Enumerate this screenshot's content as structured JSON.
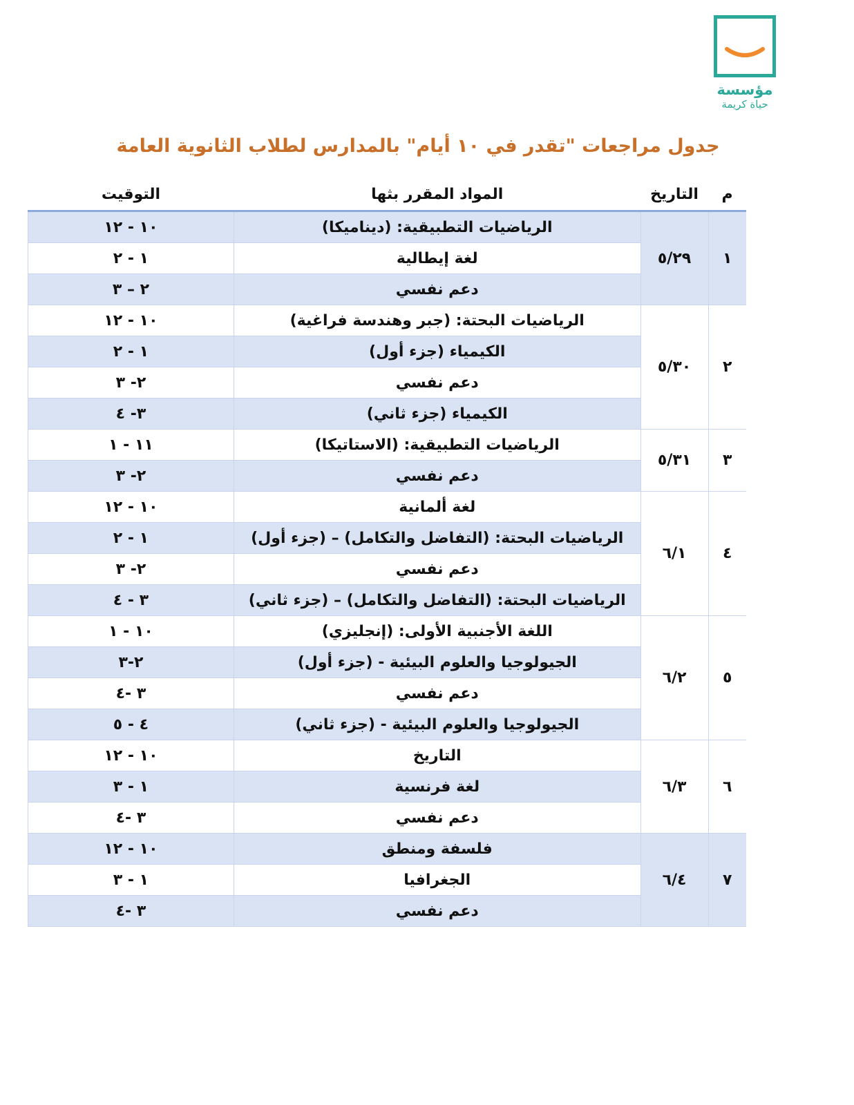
{
  "logo": {
    "name": "مؤسسة",
    "subtitle": "حياة كريمة"
  },
  "title": "جدول مراجعات \"تقدر في ١٠ أيام\" بالمدارس لطلاب الثانوية العامة",
  "table": {
    "headers": [
      "م",
      "التاريخ",
      "المواد المقرر بثها",
      "التوقيت"
    ],
    "groups": [
      {
        "number": "١",
        "date": "٥/٢٩",
        "rows": [
          {
            "subject": "الرياضيات التطبيقية: (ديناميكا)",
            "time": "١٠ - ١٢"
          },
          {
            "subject": "لغة إيطالية",
            "time": "١ - ٢"
          },
          {
            "subject": "دعم نفسي",
            "time": "٢ – ٣"
          }
        ]
      },
      {
        "number": "٢",
        "date": "٥/٣٠",
        "rows": [
          {
            "subject": "الرياضيات البحتة: (جبر وهندسة فراغية)",
            "time": "١٠ - ١٢"
          },
          {
            "subject": "الكيمياء (جزء أول)",
            "time": "١ - ٢"
          },
          {
            "subject": "دعم نفسي",
            "time": "٢- ٣"
          },
          {
            "subject": "الكيمياء (جزء ثاني)",
            "time": "٣- ٤"
          }
        ]
      },
      {
        "number": "٣",
        "date": "٥/٣١",
        "rows": [
          {
            "subject": "الرياضيات التطبيقية: (الاستاتيكا)",
            "time": "١١ - ١"
          },
          {
            "subject": "دعم نفسي",
            "time": "٢- ٣"
          }
        ]
      },
      {
        "number": "٤",
        "date": "٦/١",
        "rows": [
          {
            "subject": "لغة ألمانية",
            "time": "١٠ - ١٢"
          },
          {
            "subject": "الرياضيات البحتة: (التفاضل والتكامل) – (جزء أول)",
            "time": "١ - ٢"
          },
          {
            "subject": "دعم نفسي",
            "time": "٢- ٣"
          },
          {
            "subject": "الرياضيات البحتة: (التفاضل والتكامل) – (جزء ثاني)",
            "time": "٣ - ٤"
          }
        ]
      },
      {
        "number": "٥",
        "date": "٦/٢",
        "rows": [
          {
            "subject": "اللغة الأجنبية الأولى: (إنجليزي)",
            "time": "١٠ - ١"
          },
          {
            "subject": "الجيولوجيا والعلوم البيئية - (جزء أول)",
            "time": "٢-٣"
          },
          {
            "subject": "دعم نفسي",
            "time": "٣ -٤"
          },
          {
            "subject": "الجيولوجيا والعلوم البيئية - (جزء ثاني)",
            "time": "٤ - ٥"
          }
        ]
      },
      {
        "number": "٦",
        "date": "٦/٣",
        "rows": [
          {
            "subject": "التاريخ",
            "time": "١٠ - ١٢"
          },
          {
            "subject": "لغة فرنسية",
            "time": "١ - ٣"
          },
          {
            "subject": "دعم نفسي",
            "time": "٣ -٤"
          }
        ]
      },
      {
        "number": "٧",
        "date": "٦/٤",
        "rows": [
          {
            "subject": "فلسفة ومنطق",
            "time": "١٠ - ١٢"
          },
          {
            "subject": "الجغرافيا",
            "time": "١ - ٣"
          },
          {
            "subject": "دعم نفسي",
            "time": "٣ -٤"
          }
        ]
      }
    ]
  }
}
